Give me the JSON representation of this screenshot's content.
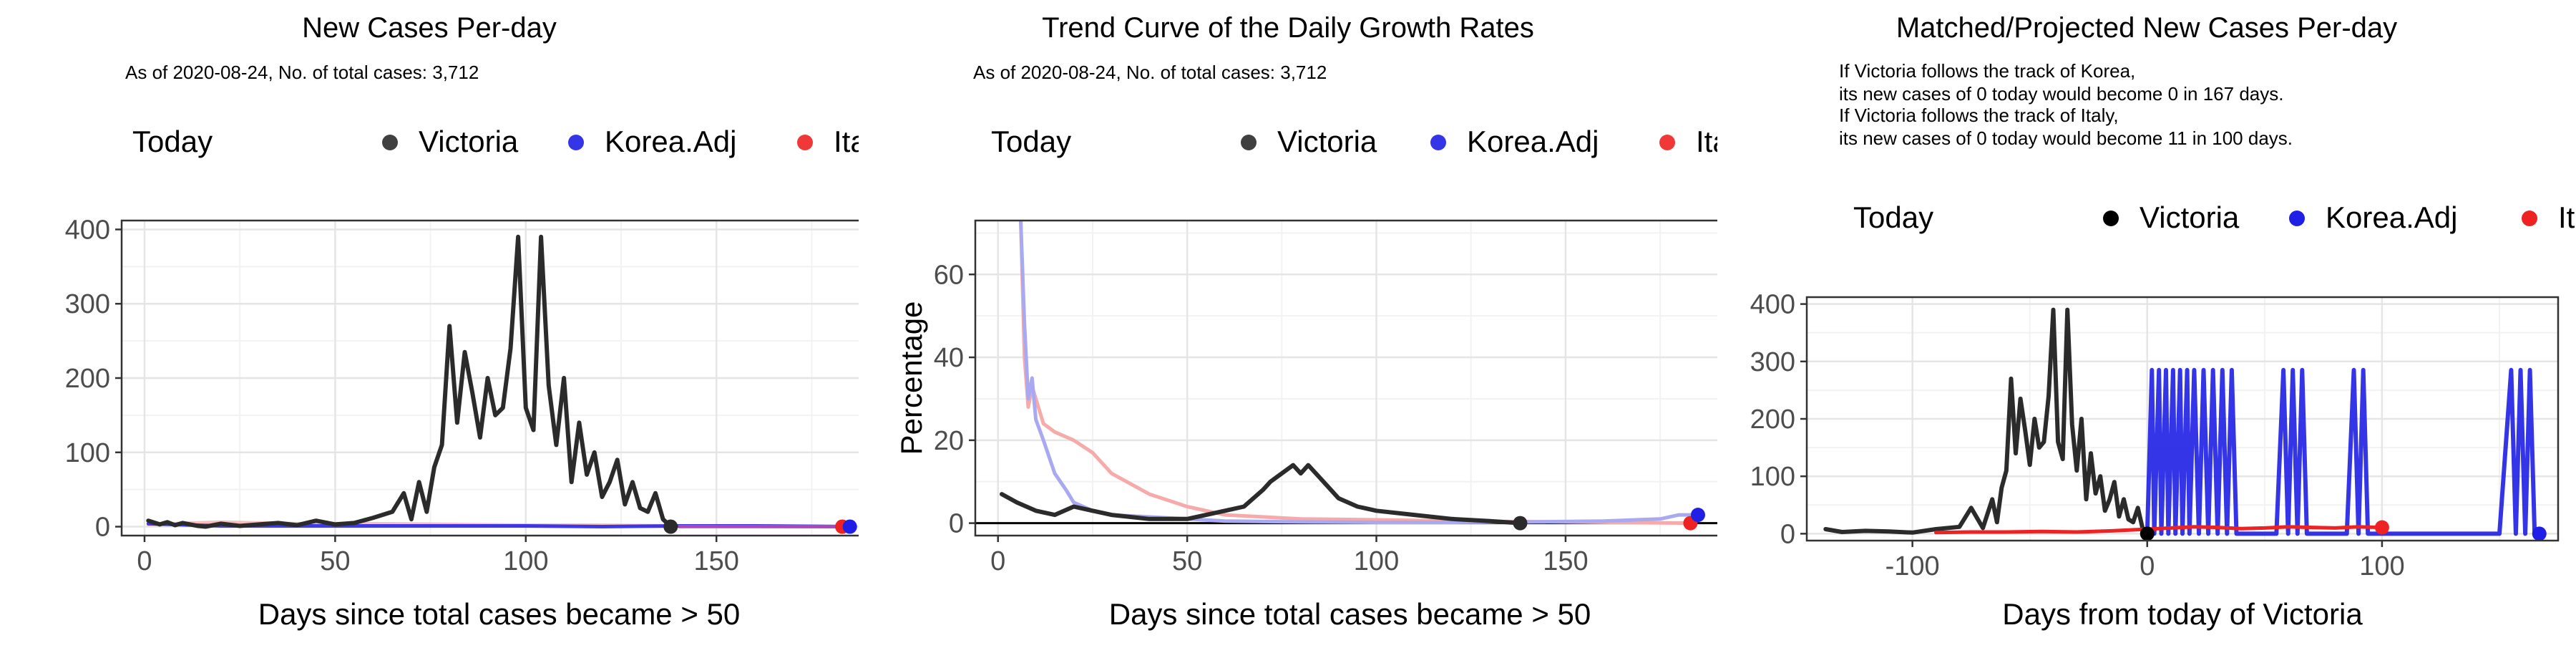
{
  "colors": {
    "victoria": "#2b2b2b",
    "korea": "#1f1fe6",
    "italy": "#ee2222",
    "korea_light": "#a9a9f2",
    "italy_light": "#f7aaaa",
    "overlap": "#c050b0",
    "grid_major": "#e5e5e5",
    "grid_minor": "#f2f2f2",
    "today_dot": "#000000"
  },
  "legend": {
    "today_label": "Today",
    "items": [
      {
        "name": "Victoria",
        "icon": "victoria-dot-icon"
      },
      {
        "name": "Korea.Adj",
        "icon": "korea-dot-icon"
      },
      {
        "name": "Italy.Adj",
        "icon": "italy-dot-icon"
      }
    ]
  },
  "chart_data": [
    {
      "type": "line",
      "title": "New Cases Per-day",
      "subtitle": "As of 2020-08-24, No. of total cases: 3,712",
      "xlabel": "Days since total cases became > 50",
      "ylabel": "",
      "xlim": [
        -6,
        192
      ],
      "ylim": [
        -12,
        412
      ],
      "x_ticks": [
        0,
        50,
        100,
        150
      ],
      "y_ticks": [
        0,
        100,
        200,
        300,
        400
      ],
      "grid": true,
      "legend_position": "top",
      "series": [
        {
          "name": "Italy.Adj",
          "x": [
            1,
            20,
            40,
            60,
            80,
            100,
            120,
            140,
            160,
            183
          ],
          "y": [
            3,
            6,
            4,
            4,
            3,
            2,
            2,
            1,
            1,
            0
          ]
        },
        {
          "name": "Korea.Adj",
          "x": [
            1,
            20,
            40,
            60,
            80,
            100,
            120,
            140,
            160,
            185
          ],
          "y": [
            4,
            1,
            1,
            1,
            1,
            1,
            0,
            1,
            1,
            0
          ]
        },
        {
          "name": "Victoria",
          "x": [
            1,
            4,
            6,
            8,
            10,
            12,
            14,
            16,
            18,
            20,
            25,
            30,
            35,
            40,
            45,
            50,
            55,
            60,
            65,
            68,
            70,
            72,
            74,
            76,
            78,
            80,
            82,
            84,
            86,
            88,
            90,
            92,
            94,
            96,
            98,
            100,
            102,
            104,
            106,
            108,
            110,
            112,
            114,
            116,
            118,
            120,
            122,
            124,
            126,
            128,
            130,
            132,
            134,
            136,
            138
          ],
          "y": [
            8,
            3,
            6,
            2,
            5,
            3,
            1,
            0,
            2,
            4,
            1,
            3,
            5,
            2,
            8,
            3,
            5,
            12,
            20,
            45,
            10,
            60,
            20,
            80,
            110,
            270,
            140,
            235,
            180,
            120,
            200,
            150,
            160,
            240,
            390,
            160,
            130,
            390,
            190,
            110,
            200,
            60,
            140,
            70,
            100,
            40,
            60,
            90,
            30,
            60,
            25,
            20,
            45,
            10,
            0
          ]
        }
      ],
      "today_points": [
        {
          "series": "Italy.Adj",
          "x": 183,
          "y": 0
        },
        {
          "series": "Korea.Adj",
          "x": 185,
          "y": 0
        },
        {
          "series": "Victoria",
          "x": 138,
          "y": 0
        }
      ]
    },
    {
      "type": "line",
      "title": "Trend Curve of the Daily Growth Rates",
      "subtitle": "As of 2020-08-24, No. of total cases: 3,712",
      "xlabel": "Days since total cases became > 50",
      "ylabel": "Percentage",
      "xlim": [
        -6,
        192
      ],
      "ylim": [
        -3,
        73
      ],
      "x_ticks": [
        0,
        50,
        100,
        150
      ],
      "y_ticks": [
        0,
        20,
        40,
        60
      ],
      "grid": true,
      "legend_position": "top",
      "series": [
        {
          "name": "Italy.Adj",
          "x": [
            6,
            7,
            8,
            9,
            10,
            12,
            15,
            20,
            25,
            30,
            40,
            50,
            60,
            70,
            80,
            100,
            120,
            150,
            183
          ],
          "y": [
            73,
            40,
            28,
            33,
            30,
            24,
            22,
            20,
            17,
            12,
            7,
            4,
            2,
            1.5,
            1,
            0.8,
            0.5,
            0.3,
            0
          ]
        },
        {
          "name": "Korea.Adj",
          "x": [
            6,
            7,
            8,
            9,
            10,
            12,
            15,
            18,
            20,
            25,
            30,
            40,
            50,
            60,
            80,
            100,
            120,
            140,
            160,
            175,
            180,
            185
          ],
          "y": [
            73,
            48,
            30,
            35,
            25,
            20,
            12,
            8,
            5,
            3,
            2,
            1.5,
            1,
            0.5,
            0.3,
            0.2,
            0.2,
            0.3,
            0.5,
            1,
            2,
            2
          ]
        },
        {
          "name": "Victoria",
          "x": [
            1,
            5,
            10,
            15,
            20,
            25,
            30,
            40,
            50,
            55,
            60,
            65,
            70,
            72,
            75,
            78,
            80,
            82,
            85,
            88,
            90,
            95,
            100,
            110,
            120,
            130,
            138
          ],
          "y": [
            7,
            5,
            3,
            2,
            4,
            3,
            2,
            1,
            1,
            2,
            3,
            4,
            8,
            10,
            12,
            14,
            12,
            14,
            11,
            8,
            6,
            4,
            3,
            2,
            1,
            0.5,
            0
          ]
        }
      ],
      "today_points": [
        {
          "series": "Italy.Adj",
          "x": 183,
          "y": 0
        },
        {
          "series": "Korea.Adj",
          "x": 185,
          "y": 2
        },
        {
          "series": "Victoria",
          "x": 138,
          "y": 0
        }
      ]
    },
    {
      "type": "line",
      "title": "Matched/Projected New Cases Per-day",
      "annotation_lines": [
        "If Victoria follows the track of Korea,",
        "its new cases of 0 today would become 0 in 167 days.",
        "If Victoria follows the track of Italy,",
        "its new cases of 0 today would become 11 in 100 days."
      ],
      "xlabel": "Days from today of Victoria",
      "ylabel": "",
      "xlim": [
        -145,
        175
      ],
      "ylim": [
        -12,
        412
      ],
      "x_ticks": [
        -100,
        0,
        100
      ],
      "y_ticks": [
        0,
        100,
        200,
        300,
        400
      ],
      "grid": true,
      "legend_position": "top",
      "series": [
        {
          "name": "Victoria",
          "x": [
            -137,
            -130,
            -120,
            -110,
            -100,
            -90,
            -80,
            -75,
            -70,
            -66,
            -64,
            -62,
            -60,
            -58,
            -56,
            -54,
            -52,
            -50,
            -48,
            -46,
            -44,
            -42,
            -40,
            -38,
            -36,
            -34,
            -32,
            -30,
            -28,
            -26,
            -24,
            -22,
            -20,
            -18,
            -16,
            -14,
            -12,
            -10,
            -8,
            -6,
            -4,
            -2,
            0
          ],
          "y": [
            8,
            3,
            5,
            4,
            2,
            8,
            12,
            45,
            10,
            60,
            20,
            80,
            110,
            270,
            140,
            235,
            180,
            120,
            200,
            150,
            160,
            240,
            390,
            160,
            130,
            390,
            190,
            110,
            200,
            60,
            140,
            70,
            100,
            40,
            60,
            90,
            30,
            60,
            25,
            20,
            45,
            10,
            0
          ]
        },
        {
          "name": "Korea.Adj",
          "x": [
            0,
            2,
            3,
            5,
            6,
            8,
            9,
            11,
            12,
            14,
            15,
            17,
            18,
            20,
            22,
            24,
            26,
            28,
            30,
            32,
            34,
            36,
            38,
            40,
            45,
            50,
            55,
            58,
            60,
            62,
            64,
            66,
            68,
            70,
            75,
            80,
            85,
            88,
            90,
            92,
            94,
            96,
            100,
            105,
            110,
            120,
            130,
            140,
            150,
            155,
            157,
            159,
            161,
            163,
            165,
            167
          ],
          "y": [
            0,
            285,
            0,
            285,
            0,
            285,
            0,
            285,
            0,
            285,
            0,
            285,
            0,
            285,
            0,
            285,
            0,
            285,
            0,
            285,
            0,
            285,
            0,
            0,
            0,
            0,
            0,
            285,
            0,
            285,
            0,
            285,
            0,
            0,
            0,
            0,
            0,
            285,
            0,
            285,
            0,
            0,
            0,
            0,
            0,
            0,
            0,
            0,
            0,
            285,
            0,
            285,
            0,
            285,
            0,
            0
          ]
        },
        {
          "name": "Italy.Adj",
          "x": [
            -90,
            -75,
            -60,
            -45,
            -30,
            -15,
            0,
            10,
            20,
            30,
            40,
            50,
            60,
            70,
            80,
            90,
            100
          ],
          "y": [
            2,
            3,
            3,
            4,
            3,
            5,
            8,
            10,
            12,
            11,
            9,
            10,
            12,
            11,
            10,
            12,
            11
          ]
        }
      ],
      "today_points": [
        {
          "series": "Victoria",
          "x": 0,
          "y": 0
        },
        {
          "series": "Korea.Adj",
          "x": 167,
          "y": 0
        },
        {
          "series": "Italy.Adj",
          "x": 100,
          "y": 11
        }
      ]
    }
  ]
}
